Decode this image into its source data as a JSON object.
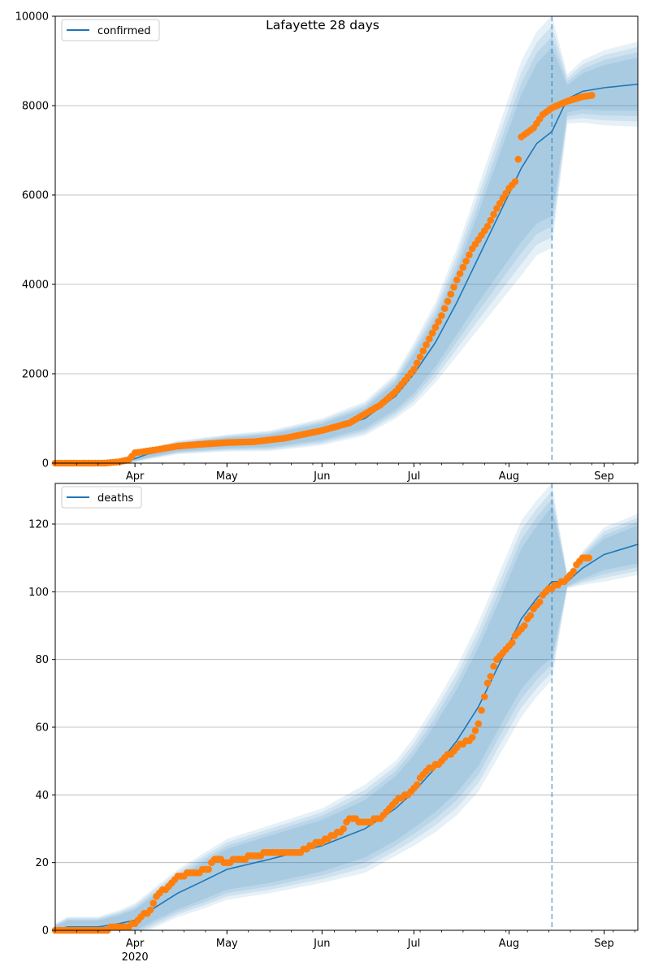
{
  "title": "Lafayette 28 days",
  "colors": {
    "model": "#1f77b4",
    "observed": "#ff7f0e",
    "band": "#1f77b4",
    "grid": "#b0b0b0",
    "vline": "#1f77b4"
  },
  "x_axis": {
    "start": "2020-03-06",
    "end": "2020-09-12",
    "month_ticks": [
      {
        "date": "2020-04-01",
        "label": "Apr",
        "sublabel": "2020"
      },
      {
        "date": "2020-05-01",
        "label": "May",
        "sublabel": ""
      },
      {
        "date": "2020-06-01",
        "label": "Jun",
        "sublabel": ""
      },
      {
        "date": "2020-07-01",
        "label": "Jul",
        "sublabel": ""
      },
      {
        "date": "2020-08-01",
        "label": "Aug",
        "sublabel": ""
      },
      {
        "date": "2020-09-01",
        "label": "Sep",
        "sublabel": ""
      }
    ],
    "minor_tick_days": 7,
    "vline_date": "2020-08-15"
  },
  "chart_data": [
    {
      "type": "line",
      "legend": "confirmed",
      "legend_position": "upper-left",
      "ylim": [
        0,
        10000
      ],
      "yticks": [
        0,
        2000,
        4000,
        6000,
        8000,
        10000
      ],
      "grid": "horizontal",
      "model": {
        "dates": [
          "2020-03-06",
          "2020-03-20",
          "2020-03-27",
          "2020-04-01",
          "2020-04-05",
          "2020-04-15",
          "2020-05-01",
          "2020-05-15",
          "2020-06-01",
          "2020-06-15",
          "2020-06-25",
          "2020-07-01",
          "2020-07-08",
          "2020-07-15",
          "2020-07-22",
          "2020-07-29",
          "2020-08-05",
          "2020-08-10",
          "2020-08-15",
          "2020-08-20",
          "2020-08-25",
          "2020-09-01",
          "2020-09-12"
        ],
        "values": [
          0,
          0,
          20,
          100,
          200,
          350,
          450,
          500,
          700,
          1000,
          1500,
          2000,
          2700,
          3600,
          4600,
          5600,
          6600,
          7150,
          7420,
          8150,
          8320,
          8400,
          8480
        ],
        "band_half_widths": [
          [
            0,
            10,
            20,
            40,
            60,
            70,
            90,
            110,
            140,
            170,
            240,
            340,
            420,
            560,
            800,
            1100,
            1400,
            1550,
            1650,
            220,
            300,
            400,
            480
          ],
          [
            0,
            20,
            40,
            80,
            120,
            150,
            190,
            230,
            300,
            380,
            500,
            700,
            900,
            1200,
            1600,
            2000,
            2400,
            2500,
            2600,
            550,
            700,
            840,
            950
          ]
        ]
      },
      "observed": {
        "dates": [
          "2020-03-06",
          "2020-03-15",
          "2020-03-22",
          "2020-03-27",
          "2020-03-30",
          "2020-04-01",
          "2020-04-03",
          "2020-04-08",
          "2020-04-15",
          "2020-04-22",
          "2020-05-01",
          "2020-05-10",
          "2020-05-20",
          "2020-06-01",
          "2020-06-10",
          "2020-06-15",
          "2020-06-20",
          "2020-06-25",
          "2020-07-01",
          "2020-07-05",
          "2020-07-10",
          "2020-07-15",
          "2020-07-20",
          "2020-07-25",
          "2020-07-28",
          "2020-08-01",
          "2020-08-03",
          "2020-08-05",
          "2020-08-09",
          "2020-08-12",
          "2020-08-15",
          "2020-08-20",
          "2020-08-25",
          "2020-08-28"
        ],
        "values": [
          0,
          0,
          0,
          30,
          80,
          230,
          250,
          300,
          380,
          420,
          460,
          480,
          560,
          730,
          900,
          1100,
          1300,
          1600,
          2100,
          2650,
          3300,
          4100,
          4800,
          5300,
          5700,
          6150,
          6300,
          7300,
          7500,
          7800,
          7950,
          8100,
          8200,
          8230
        ]
      }
    },
    {
      "type": "line",
      "legend": "deaths",
      "legend_position": "upper-left",
      "ylim": [
        0,
        132
      ],
      "yticks": [
        0,
        20,
        40,
        60,
        80,
        100,
        120
      ],
      "grid": "horizontal",
      "model": {
        "dates": [
          "2020-03-06",
          "2020-03-10",
          "2020-03-20",
          "2020-03-27",
          "2020-04-01",
          "2020-04-08",
          "2020-04-15",
          "2020-04-22",
          "2020-05-01",
          "2020-05-15",
          "2020-06-01",
          "2020-06-15",
          "2020-06-25",
          "2020-07-01",
          "2020-07-08",
          "2020-07-15",
          "2020-07-22",
          "2020-07-29",
          "2020-08-05",
          "2020-08-10",
          "2020-08-15",
          "2020-08-20",
          "2020-08-25",
          "2020-09-01",
          "2020-09-12"
        ],
        "values": [
          0,
          1,
          1,
          2,
          3,
          7,
          11,
          14,
          18,
          21,
          25,
          30,
          36,
          41,
          48,
          56,
          66,
          79,
          92,
          98,
          103,
          103,
          107,
          111,
          114
        ],
        "band_half_widths": [
          [
            1,
            1.5,
            1.5,
            2,
            2.5,
            3,
            4,
            4.5,
            5,
            6,
            6.5,
            7,
            8,
            9,
            11,
            13,
            15,
            16,
            18,
            19,
            20,
            1,
            2.5,
            3.5,
            4.5
          ],
          [
            2,
            3,
            3,
            4,
            5,
            6,
            7,
            8,
            9,
            10,
            11,
            13,
            14,
            16,
            19,
            22,
            25,
            27,
            29,
            29,
            29,
            2,
            5,
            8,
            9
          ]
        ]
      },
      "observed": {
        "dates": [
          "2020-03-06",
          "2020-03-20",
          "2020-03-27",
          "2020-03-30",
          "2020-04-01",
          "2020-04-03",
          "2020-04-06",
          "2020-04-08",
          "2020-04-12",
          "2020-04-15",
          "2020-04-20",
          "2020-04-25",
          "2020-04-27",
          "2020-05-01",
          "2020-05-05",
          "2020-05-10",
          "2020-05-15",
          "2020-05-25",
          "2020-05-28",
          "2020-06-01",
          "2020-06-05",
          "2020-06-08",
          "2020-06-10",
          "2020-06-15",
          "2020-06-20",
          "2020-06-25",
          "2020-06-30",
          "2020-07-05",
          "2020-07-10",
          "2020-07-15",
          "2020-07-20",
          "2020-07-22",
          "2020-07-25",
          "2020-07-28",
          "2020-08-01",
          "2020-08-05",
          "2020-08-10",
          "2020-08-13",
          "2020-08-15",
          "2020-08-20",
          "2020-08-25",
          "2020-08-27"
        ],
        "values": [
          0,
          0,
          1,
          1,
          2,
          4,
          6,
          10,
          13,
          16,
          17,
          18,
          21,
          20,
          21,
          22,
          23,
          23,
          25,
          26,
          28,
          30,
          33,
          32,
          33,
          38,
          41,
          47,
          50,
          54,
          57,
          61,
          73,
          80,
          84,
          89,
          96,
          100,
          101,
          104,
          110,
          110
        ]
      }
    }
  ]
}
